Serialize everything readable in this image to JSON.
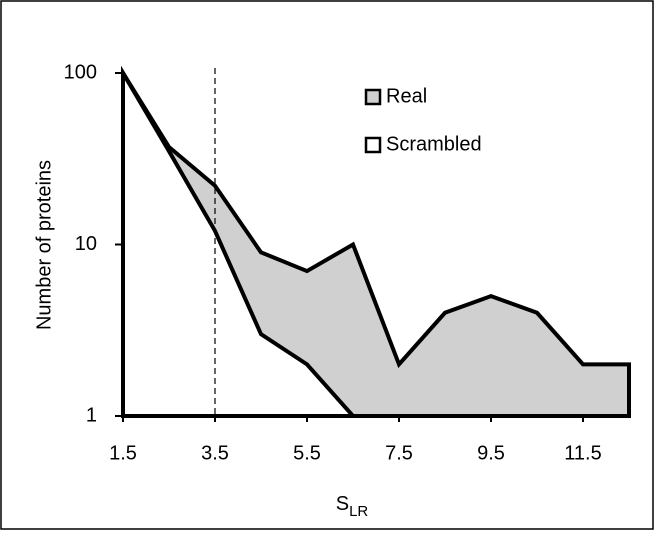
{
  "chart_data": {
    "type": "area",
    "ylabel": "Number of proteins",
    "xlabel": "S",
    "xlabel_sub": "LR",
    "x": [
      1.5,
      2.5,
      3.5,
      4.5,
      5.5,
      6.5,
      7.5,
      8.5,
      9.5,
      10.5,
      11.5,
      12.5
    ],
    "series": [
      {
        "name": "Real",
        "color": "#d0d0d0",
        "values": [
          100,
          37,
          22,
          9,
          7,
          10,
          2,
          4,
          5,
          4,
          2,
          2
        ]
      },
      {
        "name": "Scrambled",
        "color": "#ffffff",
        "values": [
          100,
          35,
          12,
          3,
          2,
          1,
          1,
          1,
          1,
          1,
          1,
          1
        ]
      }
    ],
    "xlim": [
      1.5,
      12.5
    ],
    "xticks": [
      1.5,
      3.5,
      5.5,
      7.5,
      9.5,
      11.5
    ],
    "ylim": [
      1,
      100
    ],
    "yticks": [
      1,
      10,
      100
    ],
    "log_y": true,
    "vline": 3.5,
    "legend": "top-right",
    "grid": false
  }
}
